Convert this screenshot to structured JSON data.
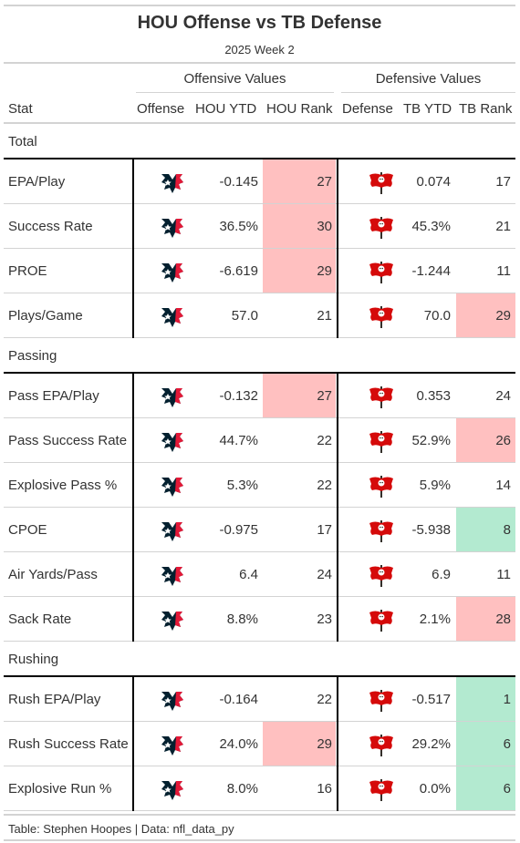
{
  "title": "HOU Offense vs TB Defense",
  "subtitle": "2025 Week 2",
  "spanners": {
    "offense": "Offensive Values",
    "defense": "Defensive Values"
  },
  "columns": {
    "stat": "Stat",
    "offense": "Offense",
    "hou_ytd": "HOU YTD",
    "hou_rank": "HOU Rank",
    "defense": "Defense",
    "tb_ytd": "TB YTD",
    "tb_rank": "TB Rank"
  },
  "colors": {
    "red_highlight": "#ffc0c0",
    "green_highlight": "#b3ead0",
    "texans_navy": "#03202f",
    "texans_red": "#e31837",
    "bucs_red": "#d50a0a",
    "bucs_pewter": "#34302b"
  },
  "groups": [
    {
      "label": "Total",
      "rows": [
        {
          "stat": "EPA/Play",
          "hou_ytd": "-0.145",
          "hou_rank": "27",
          "tb_ytd": "0.074",
          "tb_rank": "17",
          "hou_hl": "red",
          "tb_hl": "none"
        },
        {
          "stat": "Success Rate",
          "hou_ytd": "36.5%",
          "hou_rank": "30",
          "tb_ytd": "45.3%",
          "tb_rank": "21",
          "hou_hl": "red",
          "tb_hl": "none"
        },
        {
          "stat": "PROE",
          "hou_ytd": "-6.619",
          "hou_rank": "29",
          "tb_ytd": "-1.244",
          "tb_rank": "11",
          "hou_hl": "red",
          "tb_hl": "none"
        },
        {
          "stat": "Plays/Game",
          "hou_ytd": "57.0",
          "hou_rank": "21",
          "tb_ytd": "70.0",
          "tb_rank": "29",
          "hou_hl": "none",
          "tb_hl": "red"
        }
      ]
    },
    {
      "label": "Passing",
      "rows": [
        {
          "stat": "Pass EPA/Play",
          "hou_ytd": "-0.132",
          "hou_rank": "27",
          "tb_ytd": "0.353",
          "tb_rank": "24",
          "hou_hl": "red",
          "tb_hl": "none"
        },
        {
          "stat": "Pass Success Rate",
          "hou_ytd": "44.7%",
          "hou_rank": "22",
          "tb_ytd": "52.9%",
          "tb_rank": "26",
          "hou_hl": "none",
          "tb_hl": "red"
        },
        {
          "stat": "Explosive Pass %",
          "hou_ytd": "5.3%",
          "hou_rank": "22",
          "tb_ytd": "5.9%",
          "tb_rank": "14",
          "hou_hl": "none",
          "tb_hl": "none"
        },
        {
          "stat": "CPOE",
          "hou_ytd": "-0.975",
          "hou_rank": "17",
          "tb_ytd": "-5.938",
          "tb_rank": "8",
          "hou_hl": "none",
          "tb_hl": "green"
        },
        {
          "stat": "Air Yards/Pass",
          "hou_ytd": "6.4",
          "hou_rank": "24",
          "tb_ytd": "6.9",
          "tb_rank": "11",
          "hou_hl": "none",
          "tb_hl": "none"
        },
        {
          "stat": "Sack Rate",
          "hou_ytd": "8.8%",
          "hou_rank": "23",
          "tb_ytd": "2.1%",
          "tb_rank": "28",
          "hou_hl": "none",
          "tb_hl": "red"
        }
      ]
    },
    {
      "label": "Rushing",
      "rows": [
        {
          "stat": "Rush EPA/Play",
          "hou_ytd": "-0.164",
          "hou_rank": "22",
          "tb_ytd": "-0.517",
          "tb_rank": "1",
          "hou_hl": "none",
          "tb_hl": "green"
        },
        {
          "stat": "Rush Success Rate",
          "hou_ytd": "24.0%",
          "hou_rank": "29",
          "tb_ytd": "29.2%",
          "tb_rank": "6",
          "hou_hl": "red",
          "tb_hl": "green"
        },
        {
          "stat": "Explosive Run %",
          "hou_ytd": "8.0%",
          "hou_rank": "16",
          "tb_ytd": "0.0%",
          "tb_rank": "6",
          "hou_hl": "none",
          "tb_hl": "green"
        }
      ]
    }
  ],
  "footer": "Table: Stephen Hoopes | Data: nfl_data_py"
}
